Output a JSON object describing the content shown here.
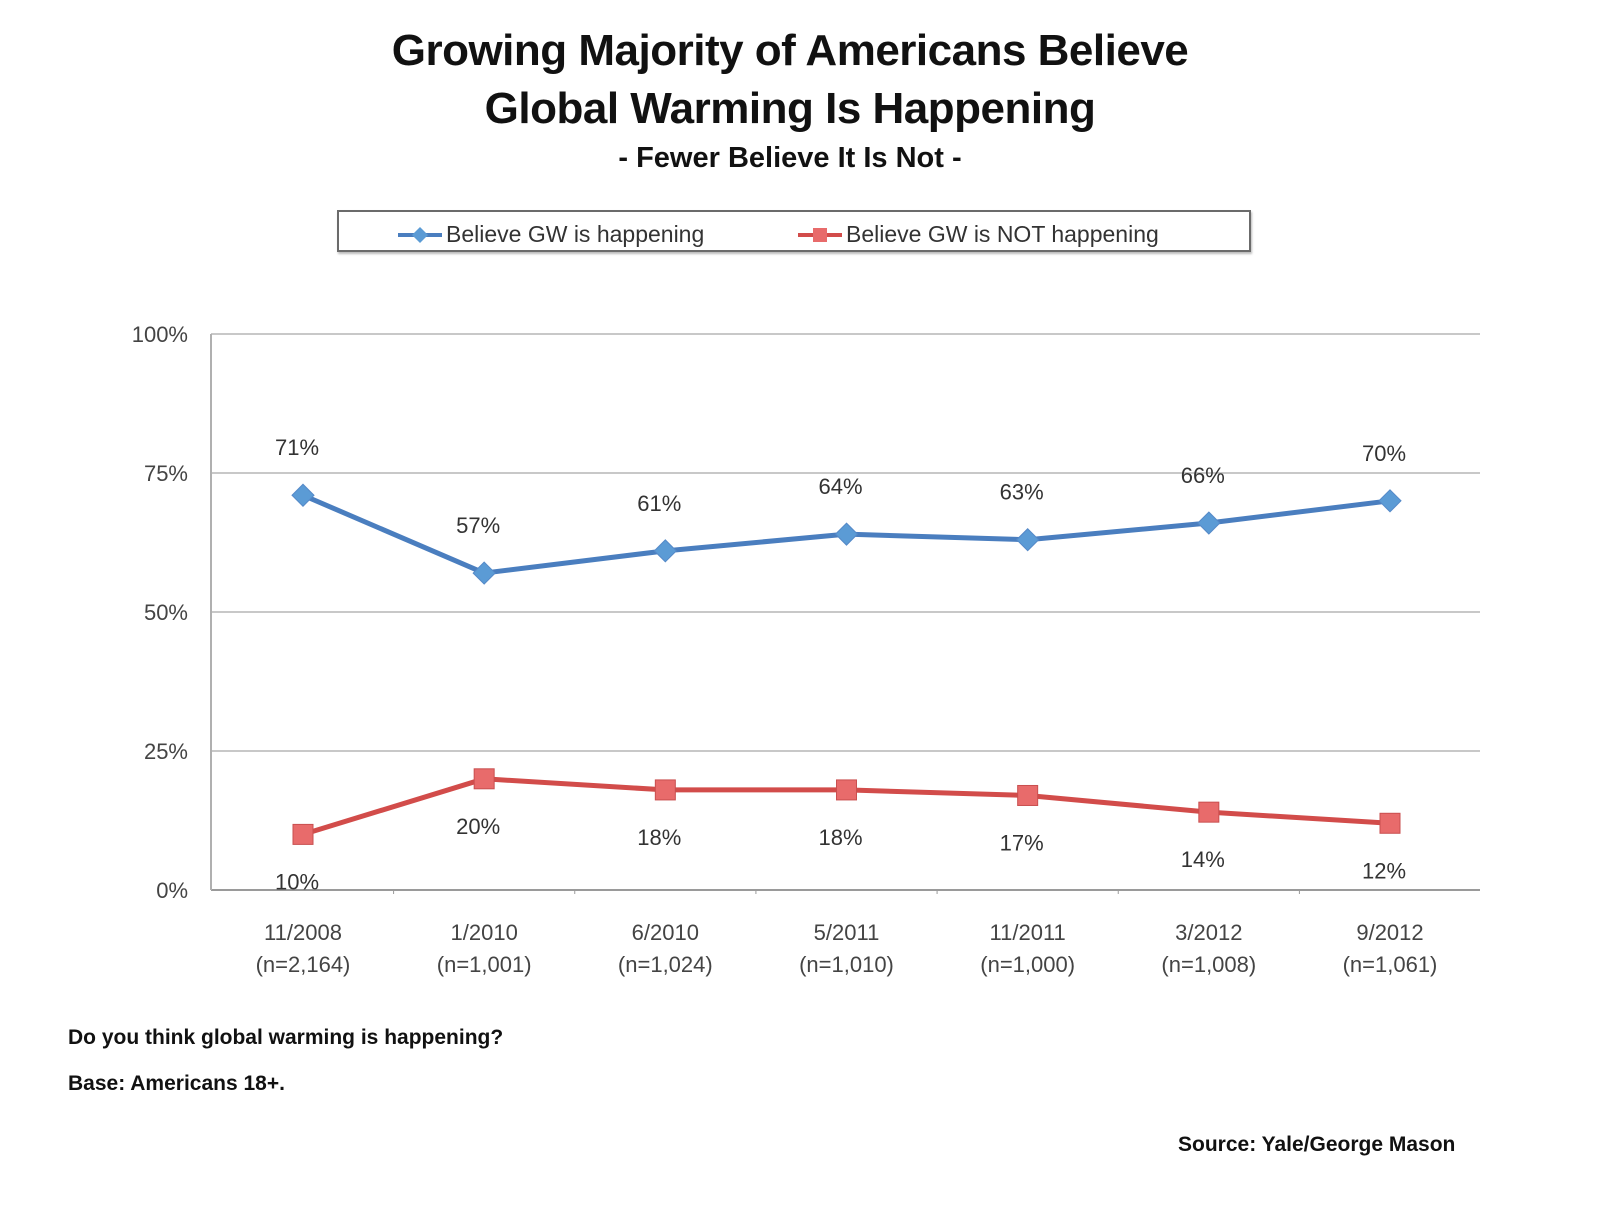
{
  "chart_data": {
    "type": "line",
    "title": "Growing Majority of Americans Believe Global Warming Is Happening",
    "title_lines": [
      "Growing Majority of Americans Believe",
      "Global Warming Is Happening"
    ],
    "subtitle": "- Fewer Believe It Is Not -",
    "xlabel": "",
    "ylabel": "",
    "ylim": [
      0,
      100
    ],
    "yticks": [
      0,
      25,
      50,
      75,
      100
    ],
    "ytick_labels": [
      "0%",
      "25%",
      "50%",
      "75%",
      "100%"
    ],
    "grid": true,
    "legend_position": "top-center",
    "categories": [
      "11/2008",
      "1/2010",
      "6/2010",
      "5/2011",
      "11/2011",
      "3/2012",
      "9/2012"
    ],
    "category_samples": [
      "(n=2,164)",
      "(n=1,001)",
      "(n=1,024)",
      "(n=1,010)",
      "(n=1,000)",
      "(n=1,008)",
      "(n=1,061)"
    ],
    "series": [
      {
        "name": "Believe GW is happening",
        "color": "#4a7ebf",
        "marker": "diamond",
        "marker_color": "#5b9bd5",
        "label_position": "above",
        "values": [
          71,
          57,
          61,
          64,
          63,
          66,
          70
        ],
        "labels": [
          "71%",
          "57%",
          "61%",
          "64%",
          "63%",
          "66%",
          "70%"
        ]
      },
      {
        "name": "Believe GW is NOT happening",
        "color": "#d24c4a",
        "marker": "square",
        "marker_color": "#e86b6b",
        "label_position": "below",
        "values": [
          10,
          20,
          18,
          18,
          17,
          14,
          12
        ],
        "labels": [
          "10%",
          "20%",
          "18%",
          "18%",
          "17%",
          "14%",
          "12%"
        ]
      }
    ]
  },
  "footer": {
    "question": "Do you think global warming is happening?",
    "base": "Base: Americans 18+.",
    "source": "Source: Yale/George Mason"
  }
}
